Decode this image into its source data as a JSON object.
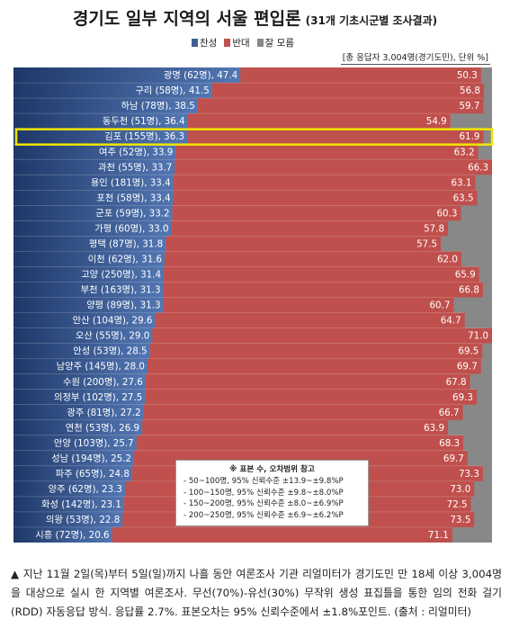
{
  "title": "경기도 일부 지역의 서울 편입론",
  "subtitle": "(31개 기초시군별 조사결과)",
  "legend": [
    {
      "label": "찬성",
      "color": "#3d5f95"
    },
    {
      "label": "반대",
      "color": "#c0504d"
    },
    {
      "label": "잘 모름",
      "color": "#888888"
    }
  ],
  "note": "[총 응답자 3,004명(경기도민), 단위 %]",
  "chart_data": {
    "type": "bar",
    "stacked": true,
    "orientation": "horizontal",
    "categories": [
      "광명 (62명)",
      "구리 (58명)",
      "하남 (78명)",
      "동두천 (51명)",
      "김포 (155명)",
      "여주 (52명)",
      "과천 (55명)",
      "용인 (181명)",
      "포천 (58명)",
      "군포 (59명)",
      "가평 (60명)",
      "평택 (87명)",
      "이천 (62명)",
      "고양 (250명)",
      "부천 (163명)",
      "양평 (89명)",
      "안산 (104명)",
      "오산 (55명)",
      "안성 (53명)",
      "남양주 (145명)",
      "수원 (200명)",
      "의정부 (102명)",
      "광주 (81명)",
      "연천 (53명)",
      "안양 (103명)",
      "성남 (194명)",
      "파주 (65명)",
      "양주 (62명)",
      "화성 (142명)",
      "의왕 (53명)",
      "시흥 (72명)"
    ],
    "series": [
      {
        "name": "찬성",
        "values": [
          47.4,
          41.5,
          38.5,
          36.4,
          36.3,
          33.9,
          33.7,
          33.4,
          33.4,
          33.2,
          33.0,
          31.8,
          31.6,
          31.4,
          31.3,
          31.3,
          29.6,
          29.0,
          28.5,
          28.0,
          27.6,
          27.5,
          27.2,
          26.9,
          25.7,
          25.2,
          24.8,
          23.3,
          23.1,
          22.8,
          20.6
        ]
      },
      {
        "name": "반대",
        "values": [
          50.3,
          56.8,
          59.7,
          54.9,
          61.9,
          63.2,
          66.3,
          63.1,
          63.5,
          60.3,
          57.8,
          57.5,
          62.0,
          65.9,
          66.8,
          60.7,
          64.7,
          71.0,
          69.5,
          69.7,
          67.8,
          69.3,
          66.7,
          63.9,
          68.3,
          69.7,
          73.3,
          73.0,
          72.5,
          73.5,
          71.1
        ]
      }
    ],
    "highlight": "김포 (155명)",
    "xlim": [
      0,
      100
    ]
  },
  "ci_box": {
    "heading": "※ 표본 수, 오차범위 참고",
    "rows": [
      "- 50~100명, 95% 신뢰수준 ±13.9~±9.8%P",
      "- 100~150명, 95% 신뢰수준 ±9.8~±8.0%P",
      "- 150~200명, 95% 신뢰수준 ±8.0~±6.9%P",
      "- 200~250명, 95% 신뢰수준 ±6.9~±6.2%P"
    ]
  },
  "caption": "▲ 지난 11월 2일(목)부터 5일(일)까지 나흘 동안 여론조사 기관 리얼미터가 경기도민 만 18세 이상 3,004명을 대상으로 실시 한 지역별 여론조사. 무선(70%)-유선(30%) 무작위 생성 표집틀을 통한 임의 전화 걸기(RDD) 자동응답 방식. 응답률 2.7%. 표본오차는 95% 신뢰수준에서 ±1.8%포인트. (출처 : 리얼미터)"
}
